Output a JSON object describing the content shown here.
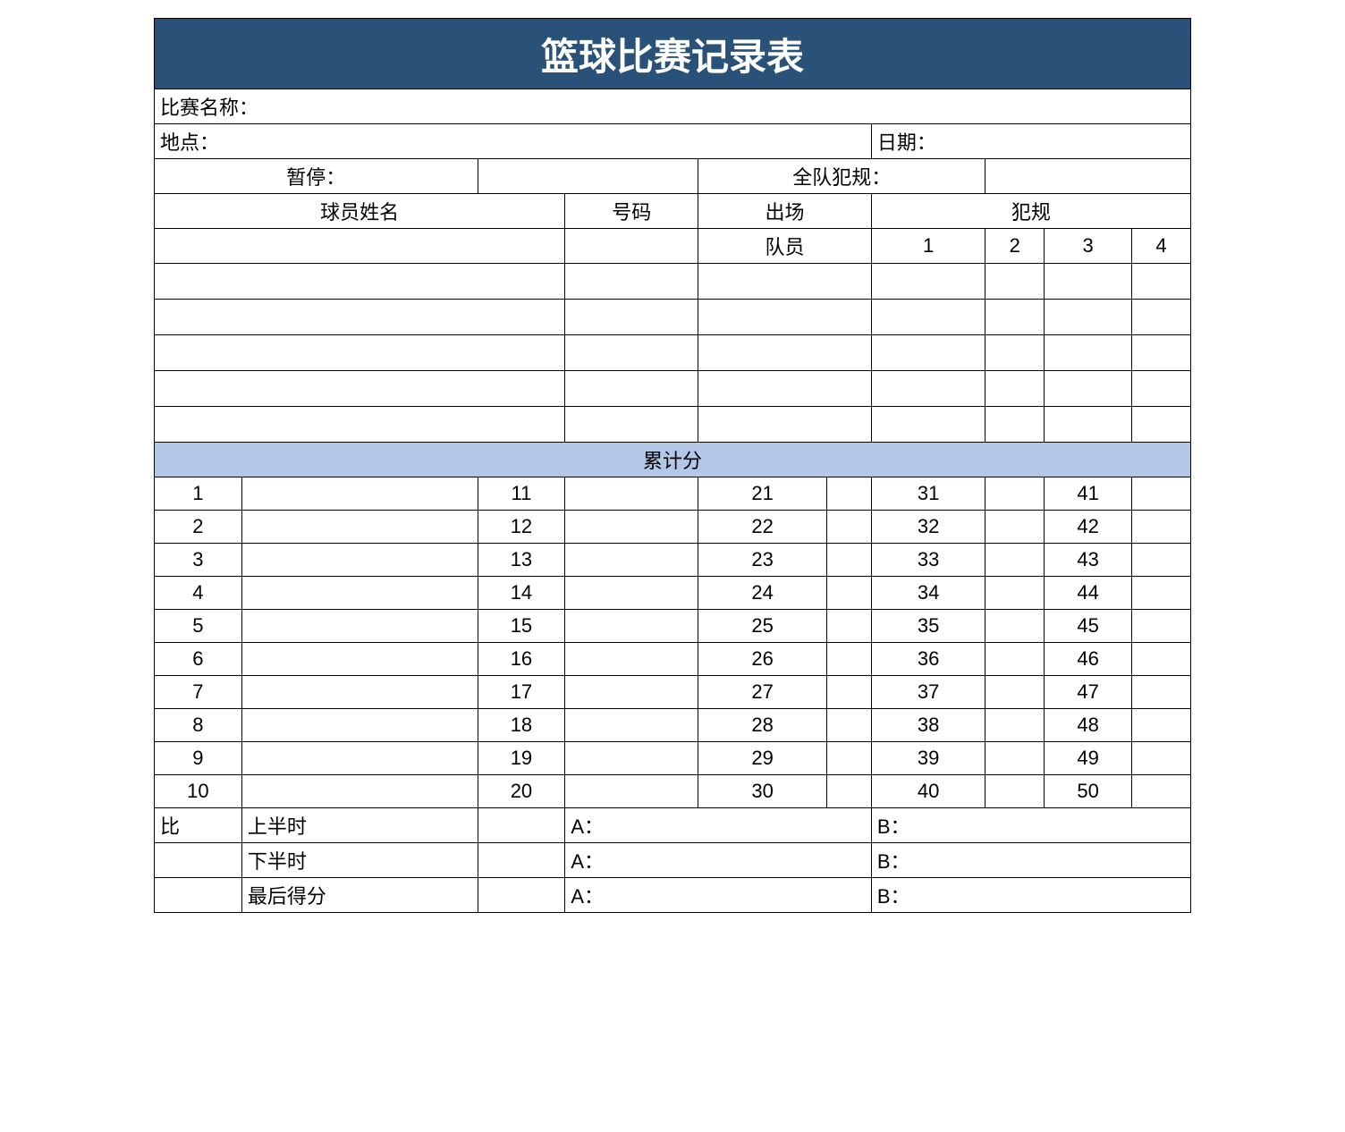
{
  "colors": {
    "title_bg": "#2a5278",
    "title_fg": "#ffffff",
    "score_header_bg": "#b3c7e6",
    "border": "#000000",
    "page_bg": "#ffffff"
  },
  "title": "篮球比赛记录表",
  "labels": {
    "match_name": "比赛名称：",
    "location": "地点：",
    "date": "日期：",
    "timeout": "暂停：",
    "team_fouls": "全队犯规：",
    "player_name": "球员姓名",
    "number": "号码",
    "on_court": "出场",
    "fouls": "犯规",
    "team_member": "队员",
    "foul_1": "1",
    "foul_2": "2",
    "foul_3": "3",
    "foul_4": "4",
    "cumulative_score": "累计分",
    "bi": "比",
    "first_half": "上半时",
    "second_half": "下半时",
    "final_score": "最后得分",
    "a_prefix": "A：",
    "b_prefix": "B："
  },
  "score_numbers": {
    "col1": [
      "1",
      "2",
      "3",
      "4",
      "5",
      "6",
      "7",
      "8",
      "9",
      "10"
    ],
    "col2": [
      "11",
      "12",
      "13",
      "14",
      "15",
      "16",
      "17",
      "18",
      "19",
      "20"
    ],
    "col3": [
      "21",
      "22",
      "23",
      "24",
      "25",
      "26",
      "27",
      "28",
      "29",
      "30"
    ],
    "col4": [
      "31",
      "32",
      "33",
      "34",
      "35",
      "36",
      "37",
      "38",
      "39",
      "40"
    ],
    "col5": [
      "41",
      "42",
      "43",
      "44",
      "45",
      "46",
      "47",
      "48",
      "49",
      "50"
    ]
  }
}
